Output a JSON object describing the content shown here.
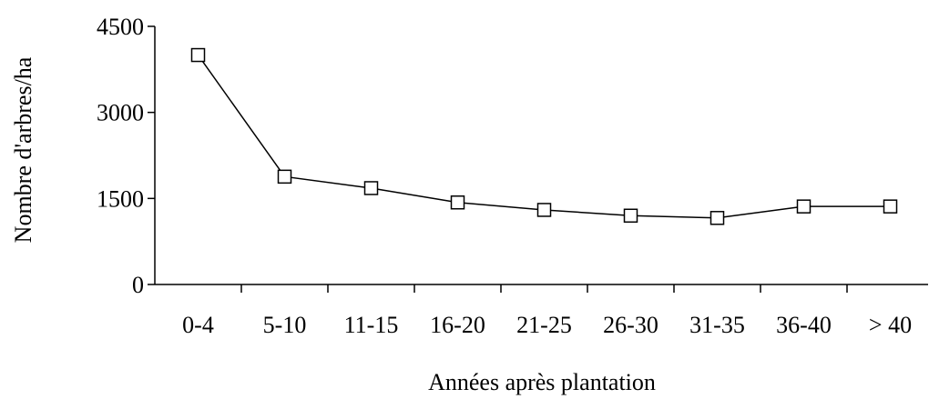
{
  "chart_data": {
    "type": "line",
    "title": "",
    "xlabel": "Années après plantation",
    "ylabel": "Nombre d'arbres/ha",
    "categories": [
      "0-4",
      "5-10",
      "11-15",
      "16-20",
      "21-25",
      "26-30",
      "31-35",
      "36-40",
      "> 40"
    ],
    "series": [
      {
        "values": [
          4000,
          1880,
          1680,
          1430,
          1300,
          1200,
          1160,
          1360,
          1360
        ]
      }
    ],
    "ylim": [
      0,
      4500
    ],
    "yticks": [
      0,
      1500,
      3000,
      4500
    ],
    "grid": false,
    "legend": "none",
    "marker": "open-square",
    "line_color": "#000000"
  }
}
